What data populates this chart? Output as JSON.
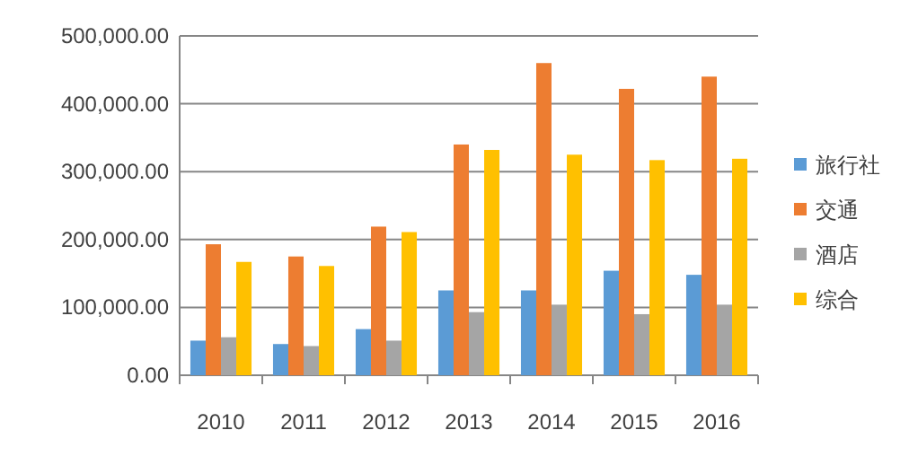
{
  "chart_data": {
    "type": "bar",
    "categories": [
      "2010",
      "2011",
      "2012",
      "2013",
      "2014",
      "2015",
      "2016"
    ],
    "series": [
      {
        "name": "旅行社",
        "color": "#5b9bd5",
        "values": [
          51000,
          46000,
          68000,
          125000,
          125000,
          154000,
          148000
        ]
      },
      {
        "name": "交通",
        "color": "#ed7d31",
        "values": [
          193000,
          175000,
          219000,
          340000,
          460000,
          422000,
          440000
        ]
      },
      {
        "name": "酒店",
        "color": "#a5a5a5",
        "values": [
          56000,
          43000,
          51000,
          93000,
          104000,
          90000,
          104000
        ]
      },
      {
        "name": "综合",
        "color": "#ffc000",
        "values": [
          167000,
          161000,
          211000,
          332000,
          325000,
          317000,
          319000
        ]
      }
    ],
    "ylim": [
      0,
      500000
    ],
    "yticks": [
      {
        "value": 0,
        "label": "0.00"
      },
      {
        "value": 100000,
        "label": "100,000.00"
      },
      {
        "value": 200000,
        "label": "200,000.00"
      },
      {
        "value": 300000,
        "label": "300,000.00"
      },
      {
        "value": 400000,
        "label": "400,000.00"
      },
      {
        "value": 500000,
        "label": "500,000.00"
      }
    ],
    "grid": "y",
    "legend": "right"
  }
}
